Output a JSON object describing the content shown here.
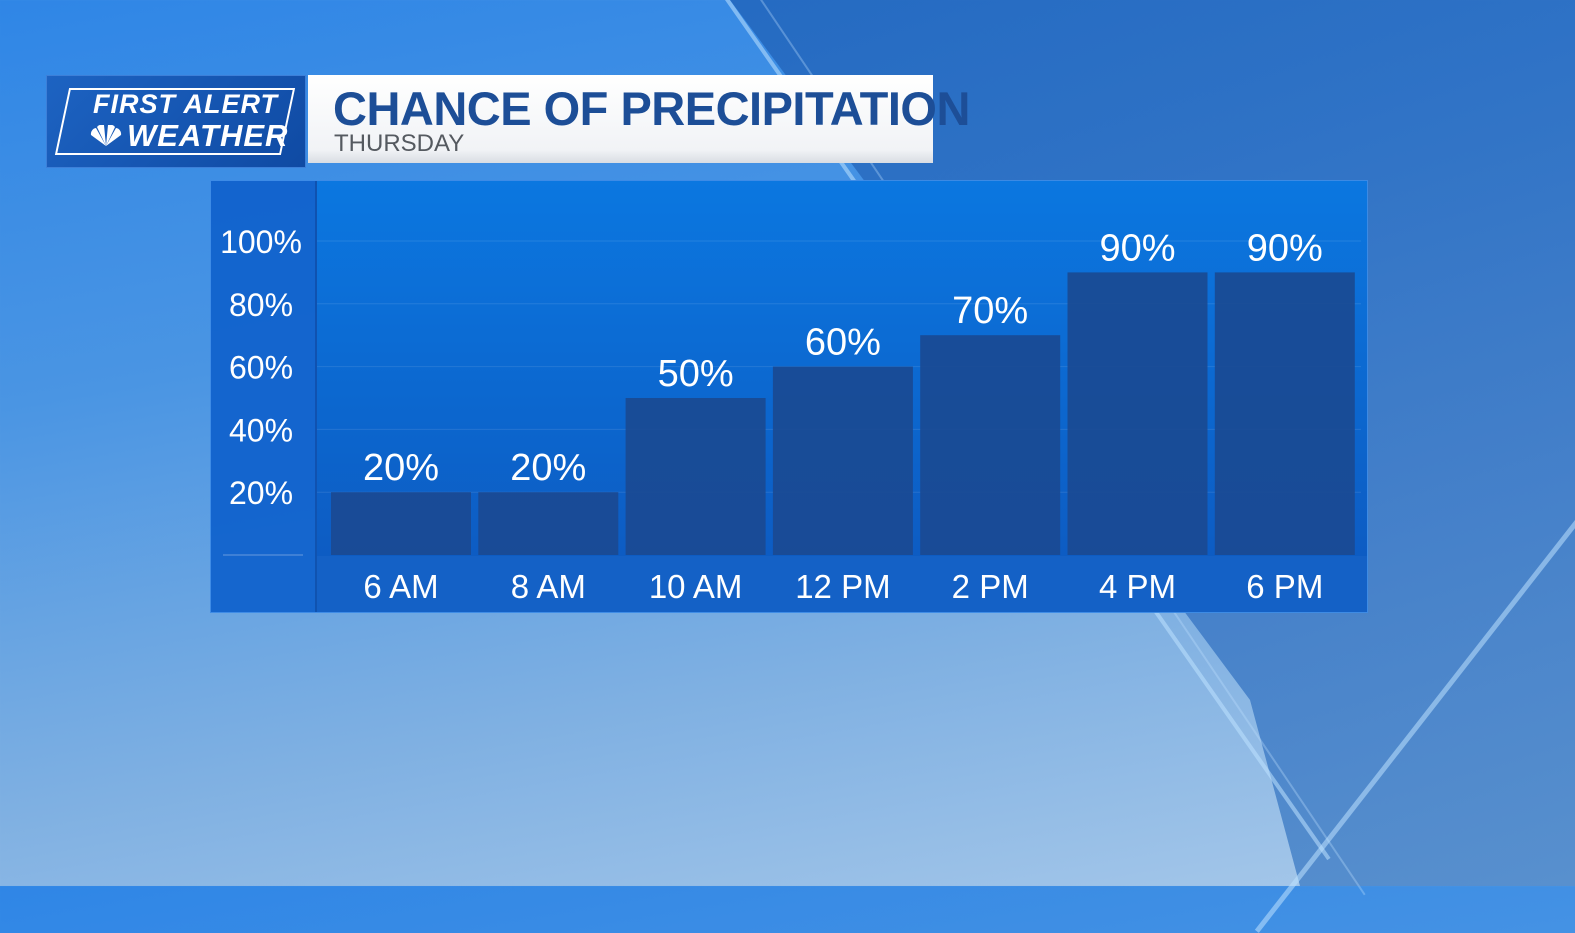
{
  "branding": {
    "line1": "FIRST ALERT",
    "line2": "WEATHER"
  },
  "colors": {
    "bar": "#1a4a92",
    "panel": "#0c68d4",
    "title_text": "#1d4e97",
    "subtitle_text": "#555a60",
    "label_text": "#ffffff"
  },
  "chart_data": {
    "type": "bar",
    "title": "CHANCE OF PRECIPITATION",
    "subtitle": "THURSDAY",
    "categories": [
      "6 AM",
      "8 AM",
      "10 AM",
      "12 PM",
      "2 PM",
      "4 PM",
      "6 PM"
    ],
    "values": [
      20,
      20,
      50,
      60,
      70,
      90,
      90
    ],
    "data_labels": [
      "20%",
      "20%",
      "50%",
      "60%",
      "70%",
      "90%",
      "90%"
    ],
    "y_ticks": [
      20,
      40,
      60,
      80,
      100
    ],
    "y_tick_labels": [
      "20%",
      "40%",
      "60%",
      "80%",
      "100%"
    ],
    "ylim": [
      0,
      100
    ],
    "grid": true,
    "legend": "none"
  }
}
